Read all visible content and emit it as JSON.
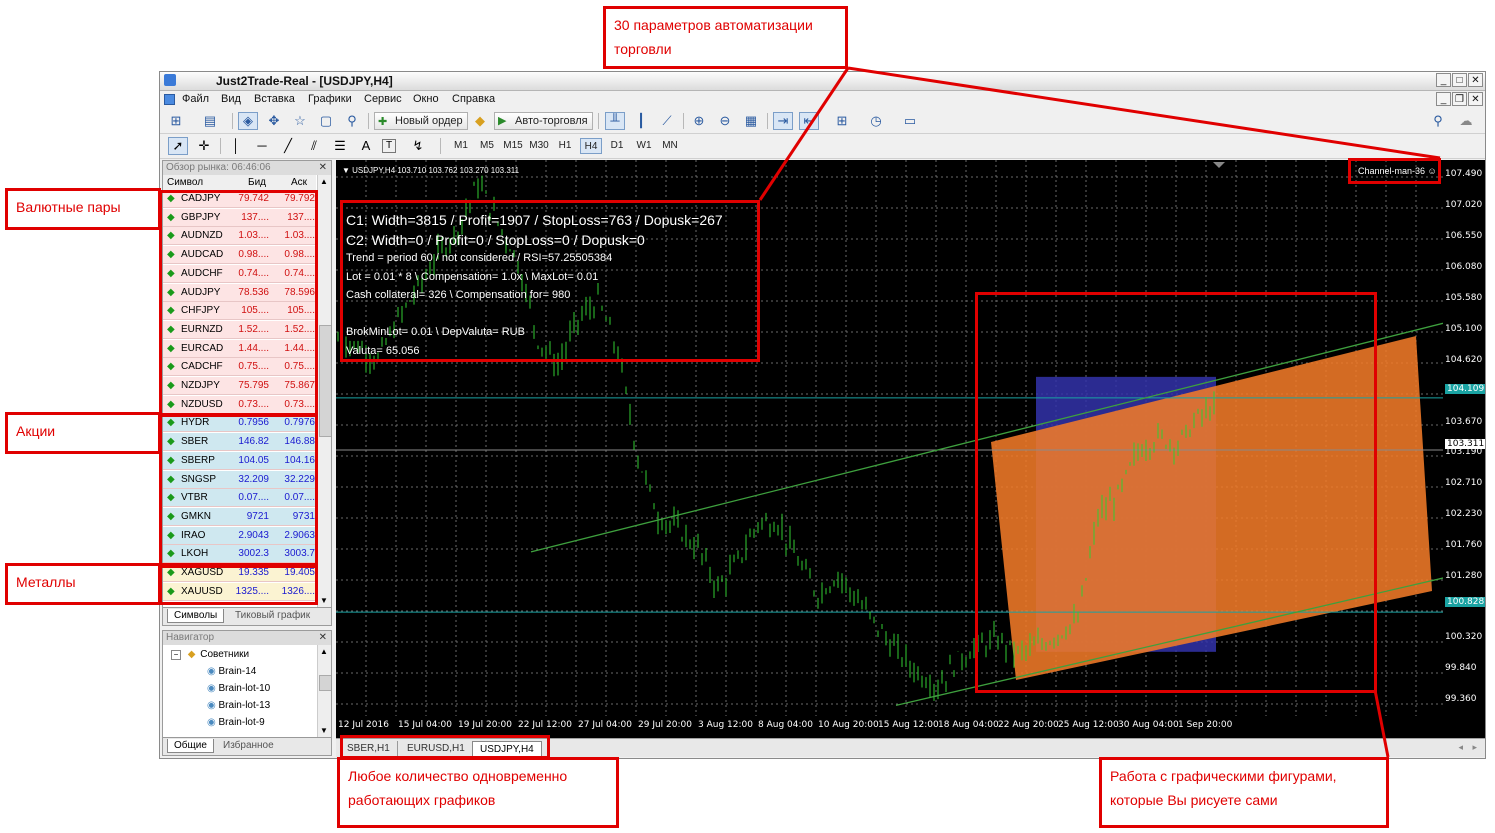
{
  "window": {
    "title": "Just2Trade-Real - [USDJPY,H4]",
    "controls": [
      "_",
      "□",
      "✕"
    ],
    "inner_controls": [
      "_",
      "❐",
      "✕"
    ]
  },
  "menu": [
    "Файл",
    "Вид",
    "Вставка",
    "Графики",
    "Сервис",
    "Окно",
    "Справка"
  ],
  "toolbar": {
    "new_order": "Новый ордер",
    "auto_trading": "Авто-торговля",
    "timeframes": [
      "M1",
      "M5",
      "M15",
      "M30",
      "H1",
      "H4",
      "D1",
      "W1",
      "MN"
    ],
    "active_timeframe": "H4",
    "text_tool": "A",
    "label_tool": "T"
  },
  "market_watch": {
    "title": "Обзор рынка: 06:46:06",
    "col_symbol": "Символ",
    "col_bid": "Бид",
    "col_ask": "Аск",
    "rows": [
      {
        "symbol": "CADJPY",
        "bid": "79.742",
        "ask": "79.792",
        "dir": "up",
        "group": "fx"
      },
      {
        "symbol": "GBPJPY",
        "bid": "137....",
        "ask": "137....",
        "dir": "up",
        "group": "fx"
      },
      {
        "symbol": "AUDNZD",
        "bid": "1.03....",
        "ask": "1.03....",
        "dir": "up",
        "group": "fx"
      },
      {
        "symbol": "AUDCAD",
        "bid": "0.98....",
        "ask": "0.98....",
        "dir": "up",
        "group": "fx"
      },
      {
        "symbol": "AUDCHF",
        "bid": "0.74....",
        "ask": "0.74....",
        "dir": "up",
        "group": "fx"
      },
      {
        "symbol": "AUDJPY",
        "bid": "78.536",
        "ask": "78.596",
        "dir": "up",
        "group": "fx"
      },
      {
        "symbol": "CHFJPY",
        "bid": "105....",
        "ask": "105....",
        "dir": "up",
        "group": "fx"
      },
      {
        "symbol": "EURNZD",
        "bid": "1.52....",
        "ask": "1.52....",
        "dir": "up",
        "group": "fx"
      },
      {
        "symbol": "EURCAD",
        "bid": "1.44....",
        "ask": "1.44....",
        "dir": "up",
        "group": "fx"
      },
      {
        "symbol": "CADCHF",
        "bid": "0.75....",
        "ask": "0.75....",
        "dir": "up",
        "group": "fx"
      },
      {
        "symbol": "NZDJPY",
        "bid": "75.795",
        "ask": "75.867",
        "dir": "up",
        "group": "fx"
      },
      {
        "symbol": "NZDUSD",
        "bid": "0.73....",
        "ask": "0.73....",
        "dir": "up",
        "group": "fx"
      },
      {
        "symbol": "HYDR",
        "bid": "0.7956",
        "ask": "0.7976",
        "dir": "up",
        "group": "stock"
      },
      {
        "symbol": "SBER",
        "bid": "146.82",
        "ask": "146.88",
        "dir": "up",
        "group": "stock"
      },
      {
        "symbol": "SBERP",
        "bid": "104.05",
        "ask": "104.16",
        "dir": "up",
        "group": "stock"
      },
      {
        "symbol": "SNGSP",
        "bid": "32.209",
        "ask": "32.229",
        "dir": "up",
        "group": "stock"
      },
      {
        "symbol": "VTBR",
        "bid": "0.07....",
        "ask": "0.07....",
        "dir": "up",
        "group": "stock"
      },
      {
        "symbol": "GMKN",
        "bid": "9721",
        "ask": "9731",
        "dir": "up",
        "group": "stock"
      },
      {
        "symbol": "IRAO",
        "bid": "2.9043",
        "ask": "2.9063",
        "dir": "up",
        "group": "stock"
      },
      {
        "symbol": "LKOH",
        "bid": "3002.3",
        "ask": "3003.7",
        "dir": "up",
        "group": "stock"
      },
      {
        "symbol": "XAGUSD",
        "bid": "19.335",
        "ask": "19.405",
        "dir": "up",
        "group": "metal"
      },
      {
        "symbol": "XAUUSD",
        "bid": "1325....",
        "ask": "1326....",
        "dir": "up",
        "group": "metal"
      }
    ],
    "tabs": [
      "Символы",
      "Тиковый график"
    ]
  },
  "navigator": {
    "title": "Навигатор",
    "root": "Советники",
    "items": [
      "Brain-14",
      "Brain-lot-10",
      "Brain-lot-13",
      "Brain-lot-9"
    ],
    "tabs": [
      "Общие",
      "Избранное"
    ]
  },
  "chart": {
    "header": "USDJPY,H4  103.710 103.762 103.270 103.311",
    "indicator": "Channel-man-36 ☺",
    "info_lines": [
      "C1: Width=3815 / Profit=1907 / StopLoss=763 / Dopusk=267",
      "C2: Width=0 / Profit=0 / StopLoss=0 / Dopusk=0",
      "Trend = period 60 / not considered / RSI=57.25505384",
      "Lot = 0.01 * 8 \\ Compensation= 1.0x \\ MaxLot= 0.01",
      "Cash collateral= 326 \\ Compensation for= 980",
      "",
      "BrokMinLot= 0.01 \\ DepValuta= RUB",
      "Valuta= 65.056"
    ],
    "y_labels": [
      "107.490",
      "107.020",
      "106.550",
      "106.080",
      "105.580",
      "105.100",
      "104.620",
      "104.109",
      "103.670",
      "103.311",
      "103.190",
      "102.710",
      "102.230",
      "101.760",
      "101.280",
      "100.828",
      "100.320",
      "99.840",
      "99.360"
    ],
    "y_highlight": [
      "104.109",
      "100.828"
    ],
    "y_current": "103.311",
    "x_labels": [
      "12 Jul 2016",
      "15 Jul 04:00",
      "19 Jul 20:00",
      "22 Jul 12:00",
      "27 Jul 04:00",
      "29 Jul 20:00",
      "3 Aug 12:00",
      "8 Aug 04:00",
      "10 Aug 20:00",
      "15 Aug 12:00",
      "18 Aug 04:00",
      "22 Aug 20:00",
      "25 Aug 12:00",
      "30 Aug 04:00",
      "1 Sep 20:00"
    ],
    "tabs": [
      "SBER,H1",
      "EURUSD,H1",
      "USDJPY,H4"
    ],
    "active_tab": "USDJPY,H4",
    "colors": {
      "candles": "#32cd32",
      "channel_fill": "#f07a28",
      "box": "#3333aa",
      "hline": "#1aa3a3"
    }
  },
  "annotations": {
    "automation": "30 параметров автоматизации торговли",
    "fx_pairs": "Валютные пары",
    "stocks": "Акции",
    "metals": "Металлы",
    "multi_charts": "Любое количество одновременно работающих графиков",
    "drawings": "Работа с графическими фигурами, которые Вы рисуете сами"
  }
}
